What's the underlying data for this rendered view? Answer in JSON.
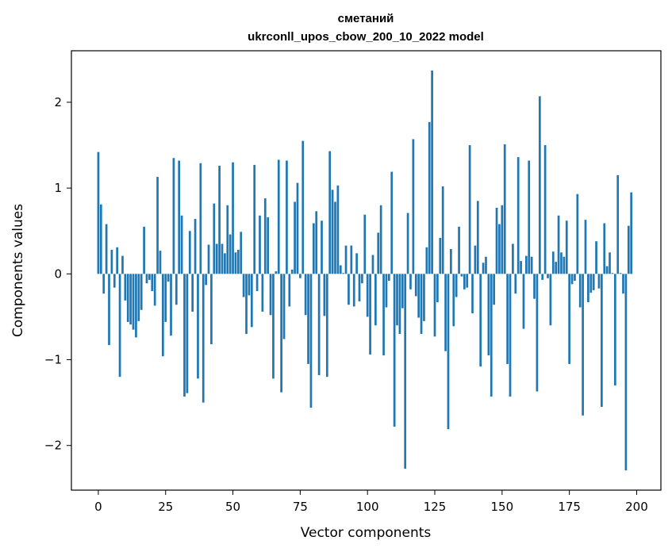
{
  "chart_data": {
    "type": "bar",
    "title_line1": "сметаний",
    "title_line2": "ukrconll_upos_cbow_200_10_2022 model",
    "xlabel": "Vector components",
    "ylabel": "Components values",
    "xlim": [
      -10,
      209
    ],
    "ylim": [
      -2.52,
      2.6
    ],
    "xticks": [
      0,
      25,
      50,
      75,
      100,
      125,
      150,
      175,
      200
    ],
    "xtick_labels": [
      "0",
      "25",
      "50",
      "75",
      "100",
      "125",
      "150",
      "175",
      "200"
    ],
    "yticks": [
      -2,
      -1,
      0,
      1,
      2
    ],
    "ytick_labels": [
      "−2",
      "−1",
      "0",
      "1",
      "2"
    ],
    "grid": false,
    "bar_color": "#1f77b4",
    "values": [
      1.42,
      0.81,
      -0.23,
      0.58,
      -0.83,
      0.28,
      -0.16,
      0.31,
      -1.2,
      0.21,
      -0.31,
      -0.56,
      -0.59,
      -0.65,
      -0.74,
      -0.55,
      -0.42,
      0.55,
      -0.11,
      -0.07,
      -0.2,
      -0.37,
      1.13,
      0.27,
      -0.96,
      -0.56,
      -0.09,
      -0.72,
      1.35,
      -0.36,
      1.32,
      0.68,
      -1.43,
      -1.39,
      0.5,
      -0.44,
      0.64,
      -1.22,
      1.29,
      -1.5,
      -0.13,
      0.34,
      -0.82,
      0.82,
      0.35,
      1.26,
      0.35,
      0.24,
      0.8,
      0.46,
      1.3,
      0.25,
      0.28,
      0.49,
      -0.27,
      -0.7,
      -0.25,
      -0.62,
      1.27,
      -0.2,
      0.68,
      -0.44,
      0.88,
      0.66,
      -0.48,
      -1.22,
      0.03,
      1.33,
      -1.38,
      -0.76,
      1.32,
      -0.38,
      0.05,
      0.84,
      1.06,
      -0.05,
      1.55,
      -0.48,
      -1.05,
      -1.56,
      0.59,
      0.73,
      -1.18,
      0.62,
      -0.49,
      -1.2,
      1.43,
      0.98,
      0.84,
      1.03,
      0.1,
      0.01,
      0.33,
      -0.36,
      0.33,
      -0.38,
      0.24,
      -0.32,
      -0.11,
      0.69,
      -0.5,
      -0.94,
      0.22,
      -0.6,
      0.48,
      0.8,
      -0.95,
      -0.39,
      -0.08,
      1.19,
      -1.78,
      -0.6,
      -0.7,
      -0.4,
      -2.27,
      0.71,
      -0.18,
      1.57,
      -0.26,
      -0.51,
      -0.7,
      -0.55,
      0.31,
      1.77,
      2.37,
      -0.73,
      -0.33,
      0.42,
      1.02,
      -0.9,
      -1.81,
      0.29,
      -0.61,
      -0.27,
      0.55,
      -0.03,
      -0.18,
      -0.16,
      1.5,
      -0.46,
      0.33,
      0.85,
      -1.08,
      0.13,
      0.2,
      -0.95,
      -1.43,
      -0.36,
      0.77,
      0.58,
      0.8,
      1.51,
      -1.05,
      -1.43,
      0.35,
      -0.23,
      1.36,
      0.15,
      -0.64,
      0.21,
      1.32,
      0.2,
      -0.29,
      -1.37,
      2.07,
      -0.07,
      1.5,
      -0.05,
      -0.6,
      0.26,
      0.14,
      0.68,
      0.25,
      0.2,
      0.62,
      -1.05,
      -0.12,
      -0.08,
      0.93,
      -0.39,
      -1.65,
      0.63,
      -0.33,
      -0.22,
      -0.19,
      0.38,
      -0.17,
      -1.55,
      0.59,
      0.09,
      0.25,
      0.01,
      -1.3,
      1.15,
      0.01,
      -0.23,
      -2.29,
      0.56,
      0.95
    ]
  }
}
